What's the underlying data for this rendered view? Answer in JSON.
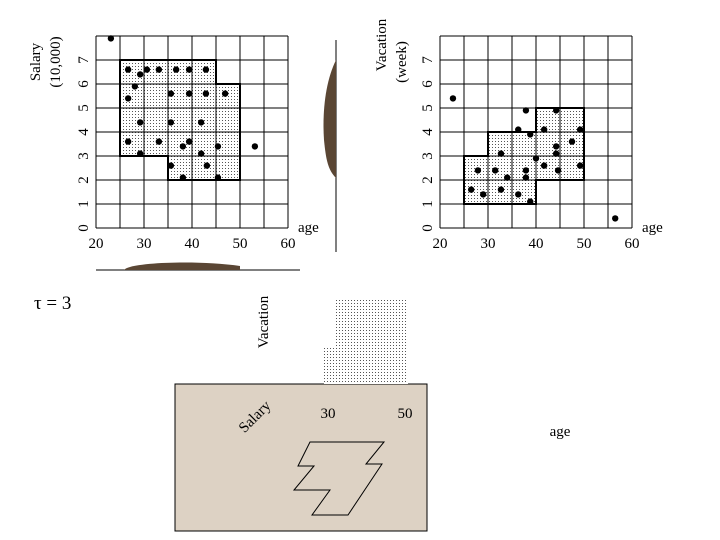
{
  "left_plot": {
    "y_label": [
      "Salary",
      "(10,000)"
    ],
    "x_label": "age",
    "xticks": [
      "20",
      "30",
      "40",
      "50",
      "60"
    ],
    "yticks": [
      "0",
      "1",
      "2",
      "3",
      "4",
      "5",
      "6",
      "7"
    ],
    "points": [
      [
        23.1,
        7.9
      ],
      [
        26.7,
        6.6
      ],
      [
        29.2,
        6.4
      ],
      [
        30.6,
        6.6
      ],
      [
        33.1,
        6.6
      ],
      [
        36.7,
        6.6
      ],
      [
        39.4,
        6.6
      ],
      [
        42.9,
        6.6
      ],
      [
        28.1,
        5.9
      ],
      [
        26.7,
        5.4
      ],
      [
        35.6,
        5.6
      ],
      [
        39.4,
        5.6
      ],
      [
        42.9,
        5.6
      ],
      [
        46.9,
        5.6
      ],
      [
        29.2,
        4.4
      ],
      [
        35.6,
        4.4
      ],
      [
        41.9,
        4.4
      ],
      [
        26.7,
        3.6
      ],
      [
        33.1,
        3.6
      ],
      [
        39.4,
        3.6
      ],
      [
        38.1,
        3.4
      ],
      [
        29.2,
        3.1
      ],
      [
        41.9,
        3.1
      ],
      [
        45.4,
        3.4
      ],
      [
        35.6,
        2.6
      ],
      [
        43.1,
        2.6
      ],
      [
        53.1,
        3.4
      ],
      [
        38.1,
        2.1
      ],
      [
        45.4,
        2.1
      ]
    ]
  },
  "right_plot": {
    "y_label": [
      "Vacation",
      "(week)"
    ],
    "x_label": "age",
    "xticks": [
      "20",
      "30",
      "40",
      "50",
      "60"
    ],
    "yticks": [
      "0",
      "1",
      "2",
      "3",
      "4",
      "5",
      "6",
      "7"
    ],
    "points": [
      [
        22.7,
        5.4
      ],
      [
        37.9,
        4.9
      ],
      [
        44.2,
        4.9
      ],
      [
        36.3,
        4.1
      ],
      [
        41.7,
        4.1
      ],
      [
        49.2,
        4.1
      ],
      [
        38.8,
        3.9
      ],
      [
        32.7,
        3.1
      ],
      [
        44.2,
        3.4
      ],
      [
        44.2,
        3.1
      ],
      [
        47.5,
        3.6
      ],
      [
        40.0,
        2.9
      ],
      [
        27.9,
        2.4
      ],
      [
        31.5,
        2.4
      ],
      [
        34.0,
        2.1
      ],
      [
        37.9,
        2.4
      ],
      [
        37.9,
        2.1
      ],
      [
        41.7,
        2.6
      ],
      [
        44.6,
        2.4
      ],
      [
        49.2,
        2.6
      ],
      [
        26.5,
        1.6
      ],
      [
        29.0,
        1.4
      ],
      [
        32.7,
        1.6
      ],
      [
        36.3,
        1.4
      ],
      [
        38.8,
        1.1
      ],
      [
        56.5,
        0.4
      ]
    ]
  },
  "density_threshold": "τ = 3",
  "view_3d": {
    "vacation_label": "Vacation",
    "salary_label": "Salary",
    "age_label": "age",
    "tick_labels": [
      "30",
      "50"
    ]
  }
}
